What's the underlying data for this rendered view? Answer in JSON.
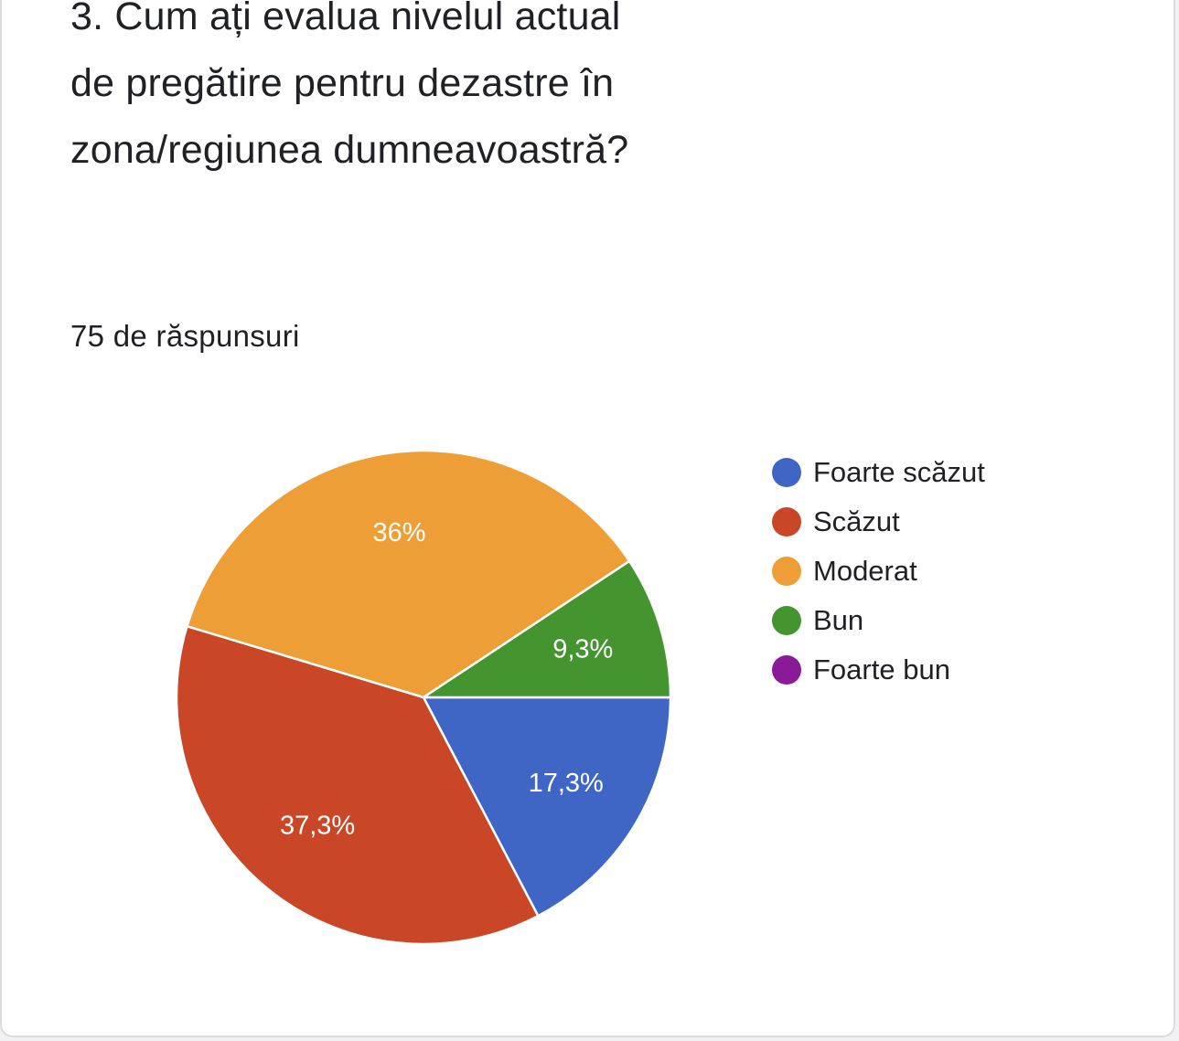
{
  "question": {
    "title": "3. Cum ați evalua nivelul actual de pregătire pentru dezastre în zona/regiunea dumneavoastră?",
    "response_count": "75 de răspunsuri"
  },
  "chart_data": {
    "type": "pie",
    "categories": [
      "Foarte scăzut",
      "Scăzut",
      "Moderat",
      "Bun",
      "Foarte bun"
    ],
    "values": [
      17.3,
      37.3,
      36,
      9.3,
      0
    ],
    "labels": [
      "17,3%",
      "37,3%",
      "36%",
      "9,3%",
      ""
    ],
    "colors": [
      "#3f66c5",
      "#c94726",
      "#ee9e37",
      "#449530",
      "#8b1a99"
    ],
    "legend": "right"
  }
}
